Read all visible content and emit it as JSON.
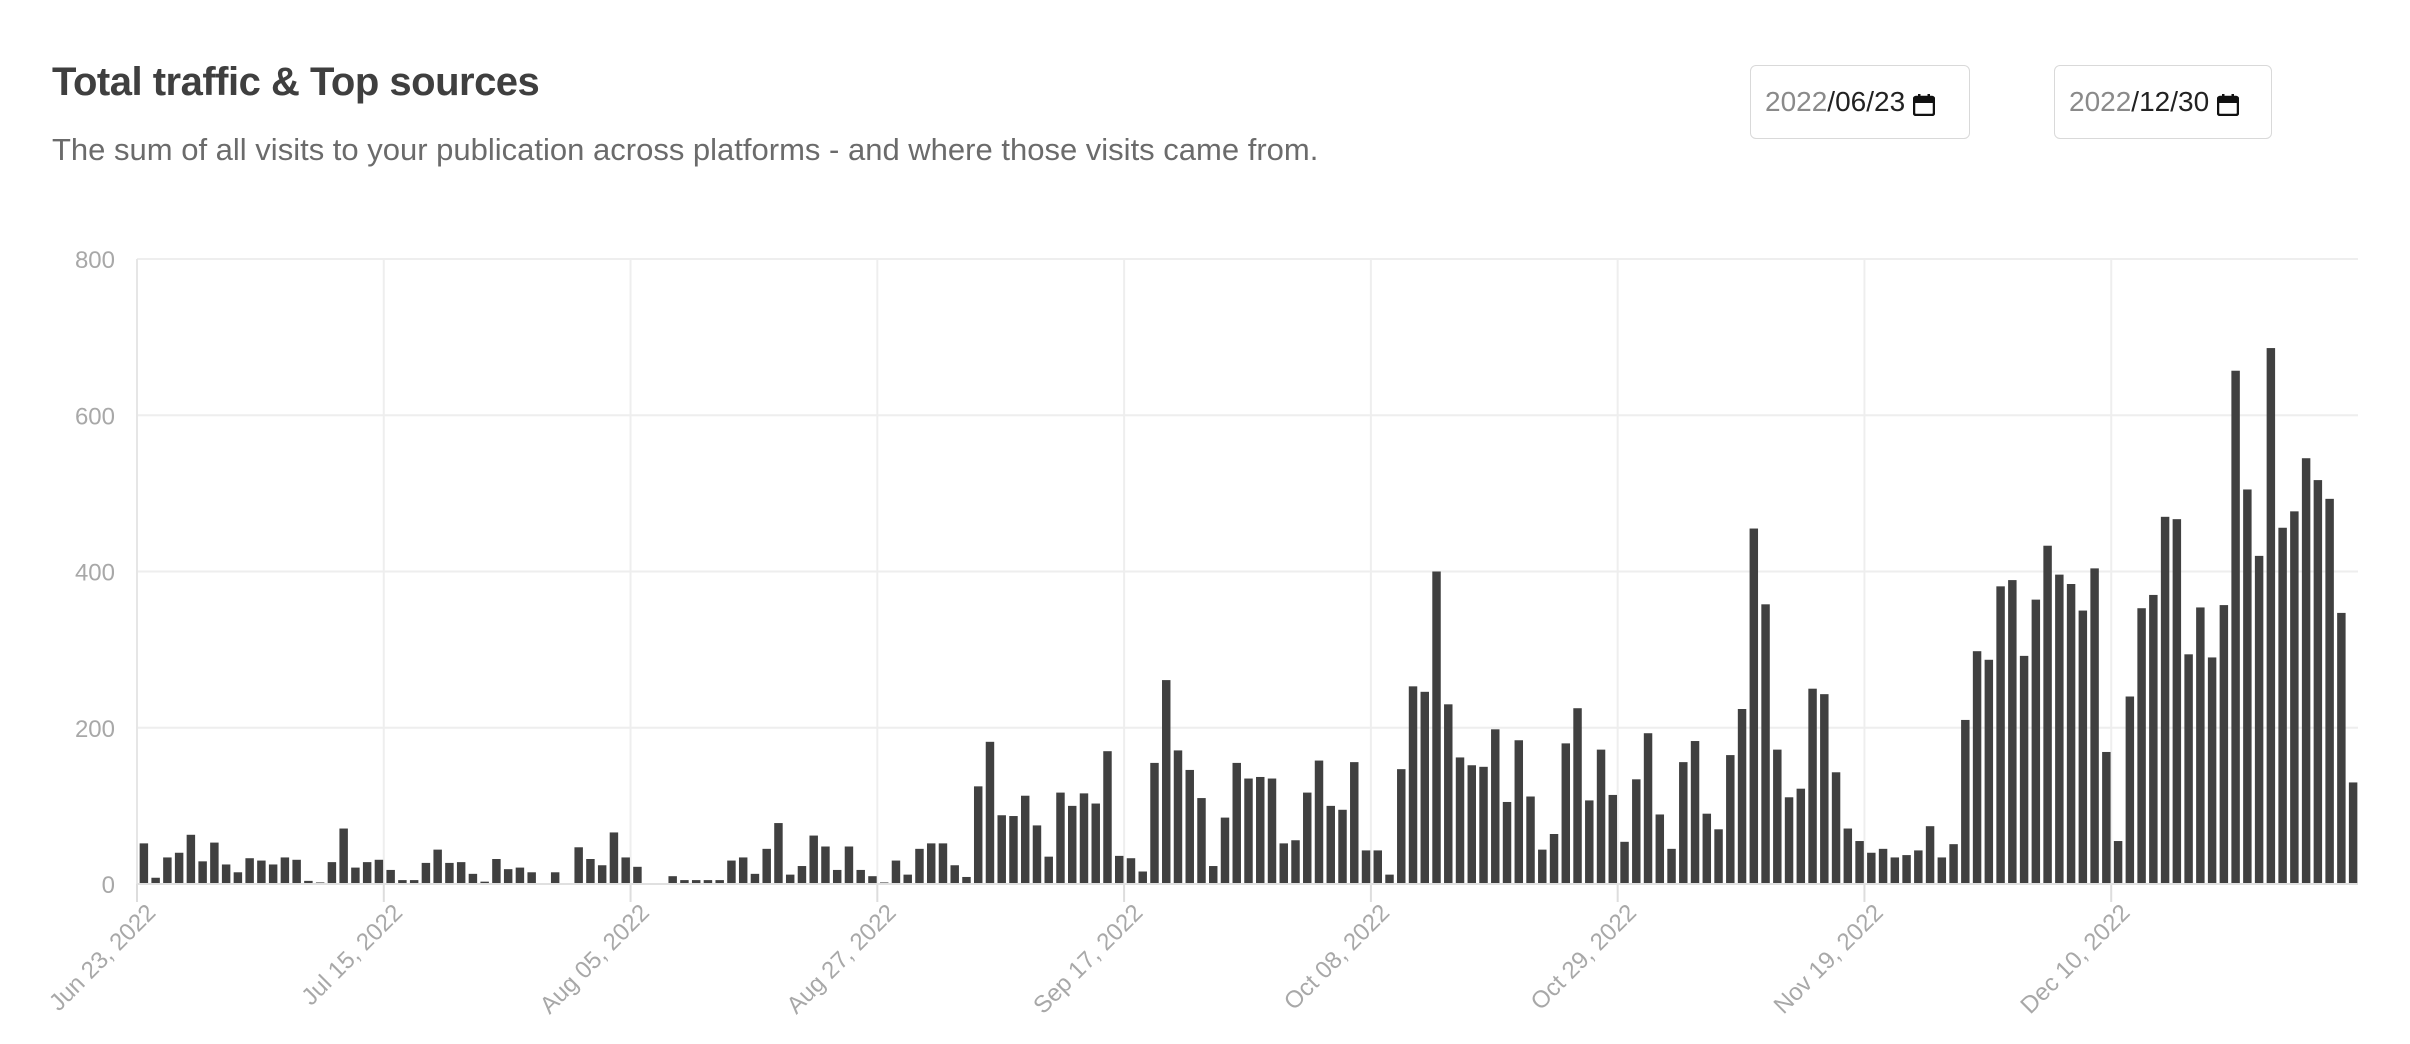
{
  "header": {
    "title": "Total traffic & Top sources",
    "subtitle": "The sum of all visits to your publication across platforms - and where those visits came from."
  },
  "date_range": {
    "start": {
      "year": "2022",
      "rest": "/06/23"
    },
    "end": {
      "year": "2022",
      "rest": "/12/30"
    }
  },
  "colors": {
    "bar": "#404040",
    "grid": "#eeeeee",
    "axis_text": "#a8a8a8"
  },
  "chart_data": {
    "type": "bar",
    "title": "",
    "xlabel": "",
    "ylabel": "",
    "ylim": [
      0,
      800
    ],
    "yticks": [
      0,
      200,
      400,
      600,
      800
    ],
    "grid": true,
    "x_start": "2022-06-23",
    "x_end": "2022-12-30",
    "xtick_labels": [
      "Jun 23, 2022",
      "Jul 15, 2022",
      "Aug 05, 2022",
      "Aug 27, 2022",
      "Sep 17, 2022",
      "Oct 08, 2022",
      "Oct 29, 2022",
      "Nov 19, 2022",
      "Dec 10, 2022"
    ],
    "values": [
      52,
      8,
      34,
      40,
      63,
      29,
      53,
      25,
      15,
      33,
      30,
      25,
      34,
      31,
      4,
      2,
      28,
      71,
      21,
      28,
      31,
      18,
      5,
      5,
      27,
      44,
      27,
      28,
      13,
      3,
      32,
      19,
      21,
      15,
      0,
      15,
      0,
      47,
      32,
      24,
      66,
      34,
      22,
      0,
      0,
      10,
      5,
      5,
      5,
      5,
      30,
      34,
      13,
      45,
      78,
      12,
      23,
      62,
      48,
      18,
      48,
      18,
      10,
      2,
      30,
      12,
      45,
      52,
      52,
      24,
      9,
      125,
      182,
      88,
      87,
      113,
      75,
      35,
      117,
      100,
      116,
      103,
      170,
      36,
      33,
      16,
      155,
      261,
      171,
      146,
      110,
      23,
      85,
      155,
      135,
      137,
      135,
      52,
      56,
      117,
      158,
      100,
      95,
      156,
      43,
      43,
      12,
      147,
      253,
      246,
      400,
      230,
      162,
      152,
      150,
      198,
      105,
      184,
      112,
      44,
      64,
      180,
      225,
      107,
      172,
      114,
      54,
      134,
      193,
      89,
      45,
      156,
      183,
      90,
      70,
      165,
      224,
      455,
      358,
      172,
      111,
      122,
      250,
      243,
      143,
      71,
      55,
      40,
      45,
      34,
      37,
      43,
      74,
      34,
      51,
      210,
      298,
      287,
      381,
      389,
      292,
      364,
      433,
      396,
      384,
      350,
      404,
      169,
      55,
      240,
      353,
      370,
      470,
      467,
      294,
      354,
      290,
      357,
      657,
      505,
      420,
      686,
      456,
      477,
      545,
      517,
      493,
      347,
      130
    ]
  }
}
